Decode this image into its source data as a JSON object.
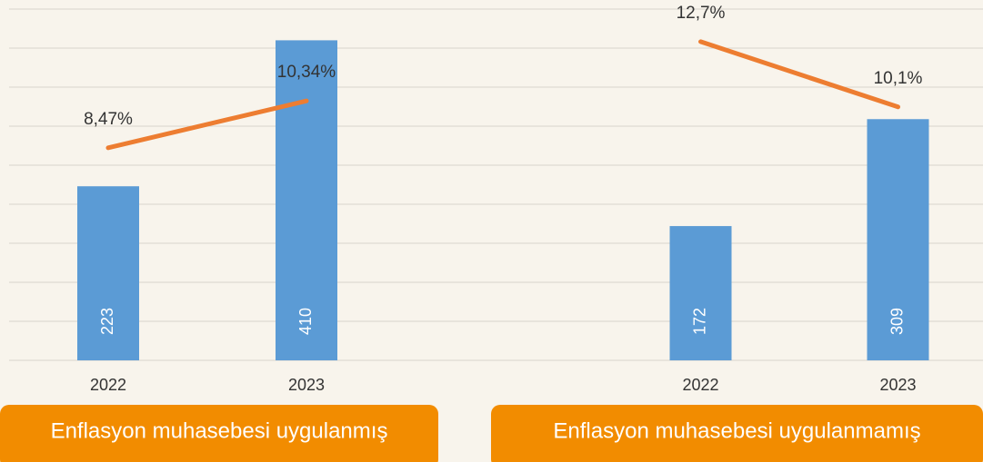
{
  "chart_data": [
    {
      "type": "bar",
      "group_label": "Enflasyon muhasebesi uygulanmış",
      "categories": [
        "2022",
        "2023"
      ],
      "series": [
        {
          "type": "bar",
          "color": "#5b9bd5",
          "values": [
            223,
            410
          ]
        },
        {
          "type": "line",
          "axis": "y2",
          "color": "#ed7d31",
          "values": [
            8.47,
            10.34
          ],
          "value_labels": [
            "8,47%",
            "10,34%"
          ]
        }
      ],
      "ylim": [
        0,
        450
      ],
      "yticks": [
        0,
        50,
        100,
        150,
        200,
        250,
        300,
        350,
        400,
        450
      ],
      "y2lim": [
        0,
        14
      ],
      "grid": true
    },
    {
      "type": "bar",
      "group_label": "Enflasyon muhasebesi uygulanmamış",
      "categories": [
        "2022",
        "2023"
      ],
      "series": [
        {
          "type": "bar",
          "color": "#5b9bd5",
          "values": [
            172,
            309
          ]
        },
        {
          "type": "line",
          "axis": "y2",
          "color": "#ed7d31",
          "values": [
            12.7,
            10.1
          ],
          "value_labels": [
            "12,7%",
            "10,1%"
          ]
        }
      ],
      "ylim": [
        0,
        450
      ],
      "yticks": [
        0,
        50,
        100,
        150,
        200,
        250,
        300,
        350,
        400,
        450
      ],
      "y2lim": [
        0,
        14
      ],
      "grid": true
    }
  ]
}
